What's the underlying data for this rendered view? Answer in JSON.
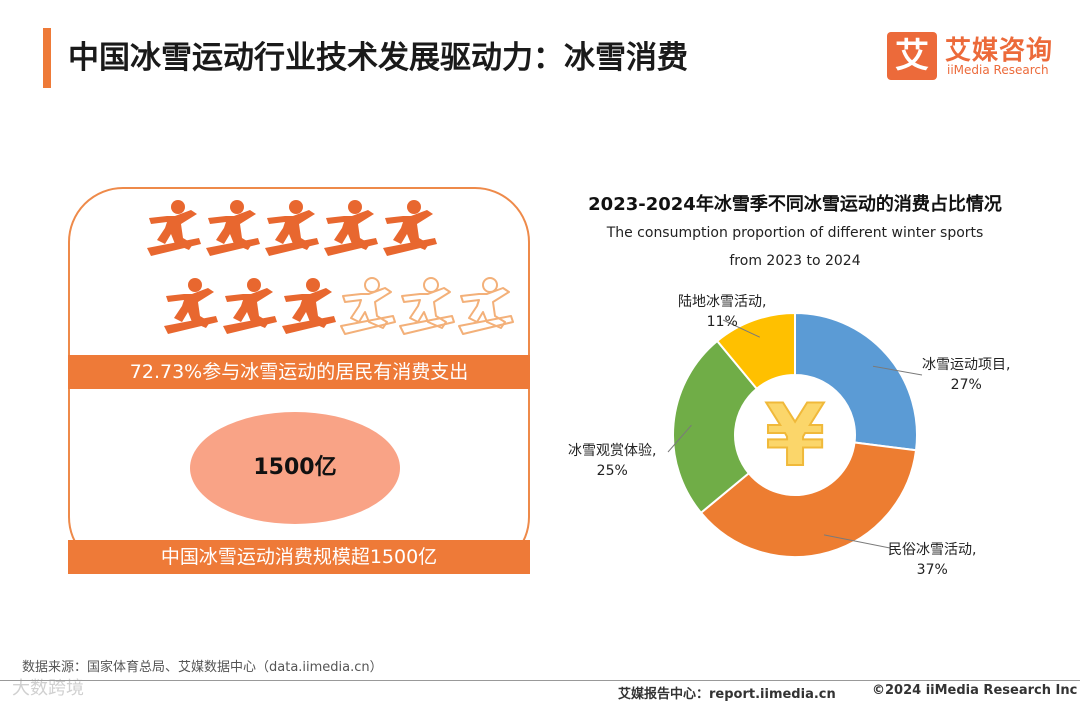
{
  "header": {
    "title": "中国冰雪运动行业技术发展驱动力：冰雪消费",
    "logo_mark": "艾",
    "logo_cn": "艾媒咨询",
    "logo_en": "iiMedia Research"
  },
  "left_panel": {
    "participants_total": 11,
    "participants_highlighted": 8,
    "band_1": "72.73%参与冰雪运动的居民有消费支出",
    "oval_value": "1500亿",
    "band_2": "中国冰雪运动消费规模超1500亿",
    "colors": {
      "accent": "#ee7a38",
      "oval": "#f9a386",
      "icon_filled": "#e8672f",
      "icon_outline": "#f3b079"
    }
  },
  "chart_data": {
    "type": "pie",
    "donut": true,
    "title": "2023-2024年冰雪季不同冰雪运动的消费占比情况",
    "subtitle_lines": [
      "The consumption proportion of different winter sports",
      "from 2023 to 2024"
    ],
    "center_symbol": "¥",
    "slices": [
      {
        "label": "冰雪运动项目,",
        "value": 27,
        "value_text": "27%",
        "color": "#5b9bd5"
      },
      {
        "label": "民俗冰雪活动,",
        "value": 37,
        "value_text": "37%",
        "color": "#ed7d31"
      },
      {
        "label": "冰雪观赏体验,",
        "value": 25,
        "value_text": "25%",
        "color": "#70ad47"
      },
      {
        "label": "陆地冰雪活动,",
        "value": 11,
        "value_text": "11%",
        "color": "#ffc000"
      }
    ]
  },
  "footer": {
    "source": "数据来源：国家体育总局、艾媒数据中心（data.iimedia.cn）",
    "website": "艾媒报告中心：report.iimedia.cn",
    "copyright": "©2024  iiMedia Research  Inc",
    "watermark": "大数跨境"
  }
}
